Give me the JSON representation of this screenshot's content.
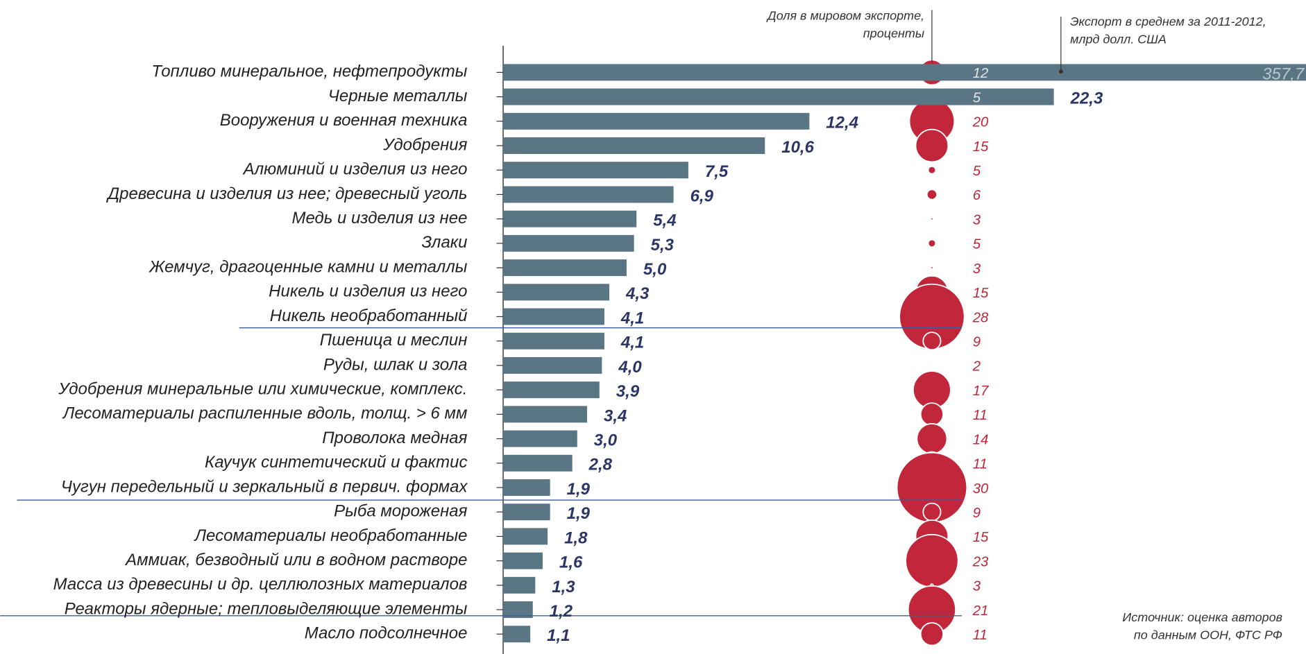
{
  "chart_data": {
    "type": "bar",
    "categories": [
      "Топливо минеральное, нефтепродукты",
      "Черные металлы",
      "Вооружения и военная техника",
      "Удобрения",
      "Алюминий и изделия из него",
      "Древесина и изделия из нее; древесный уголь",
      "Медь и изделия из нее",
      "Злаки",
      "Жемчуг, драгоценные камни и металлы",
      "Никель и изделия из него",
      "Никель необработанный",
      "Пшеница и меслин",
      "Руды, шлак и зола",
      "Удобрения минеральные или химические, комплекс.",
      "Лесоматериалы распиленные вдоль, толщ. > 6 мм",
      "Проволока медная",
      "Каучук синтетический и фактис",
      "Чугун передельный и зеркальный в первич. формах",
      "Рыба мороженая",
      "Лесоматериалы необработанные",
      "Аммиак, безводный или в водном растворе",
      "Масса из древесины и др. целлюлозных материалов",
      "Реакторы ядерные; тепловыделяющие элементы",
      "Масло подсолнечное"
    ],
    "values": [
      357.7,
      22.3,
      12.4,
      10.6,
      7.5,
      6.9,
      5.4,
      5.3,
      5.0,
      4.3,
      4.1,
      4.1,
      4.0,
      3.9,
      3.4,
      3.0,
      2.8,
      1.9,
      1.9,
      1.8,
      1.6,
      1.3,
      1.2,
      1.1
    ],
    "value_labels": [
      "357,7",
      "22,3",
      "12,4",
      "10,6",
      "7,5",
      "6,9",
      "5,4",
      "5,3",
      "5,0",
      "4,3",
      "4,1",
      "4,1",
      "4,0",
      "3,9",
      "3,4",
      "3,0",
      "2,8",
      "1,9",
      "1,9",
      "1,8",
      "1,6",
      "1,3",
      "1,2",
      "1,1"
    ],
    "bubble_values": [
      12,
      5,
      20,
      15,
      5,
      6,
      3,
      5,
      3,
      15,
      28,
      9,
      2,
      17,
      11,
      14,
      11,
      30,
      9,
      15,
      23,
      3,
      21,
      11
    ],
    "xlim": [
      0,
      32.5
    ],
    "color": "#5a7684",
    "bubble_color": "#c1263b",
    "bubble_title": [
      "Доля в мировом экспорте,",
      "проценты"
    ],
    "value_title": [
      "Экспорт в среднем за 2011-2012,",
      "млрд долл. США"
    ],
    "source": [
      "Источник: оценка авторов",
      "по данным ООН, ФТС РФ"
    ]
  }
}
